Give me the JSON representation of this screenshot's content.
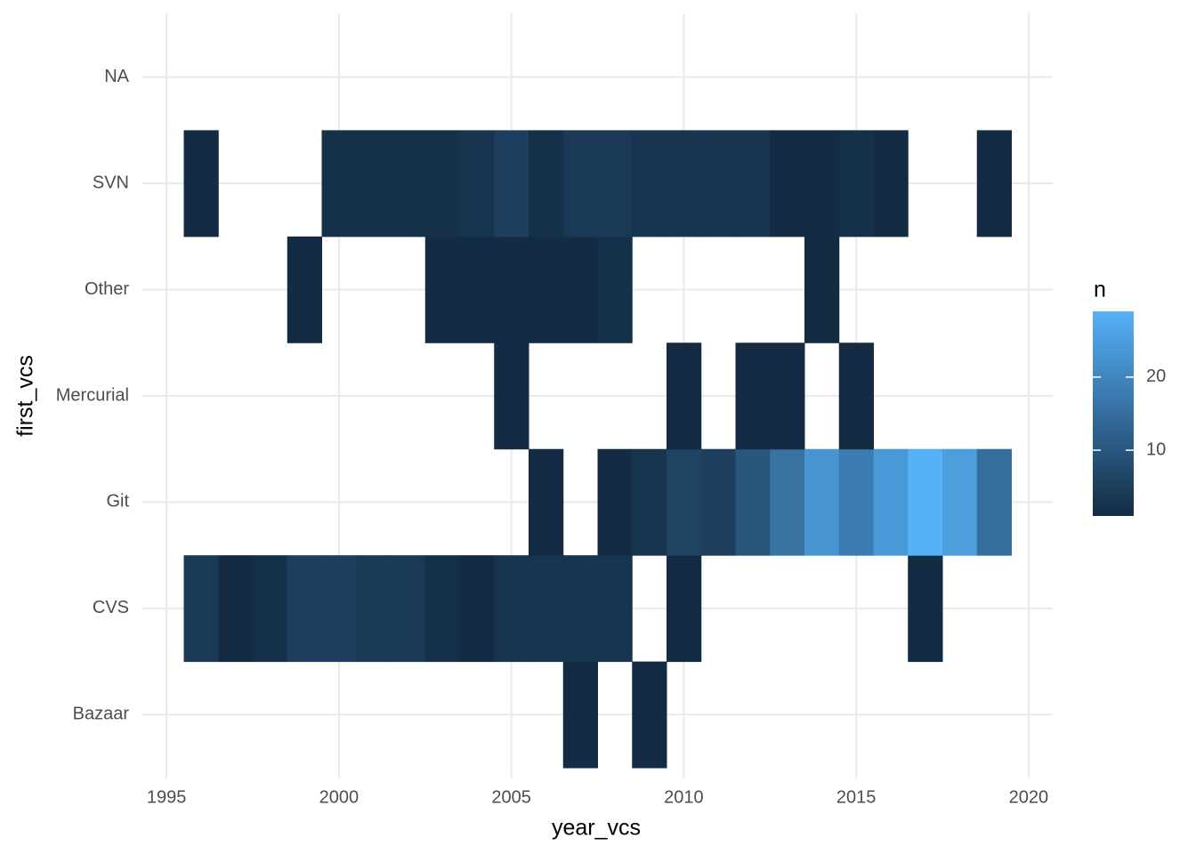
{
  "chart_data": {
    "type": "heatmap",
    "x_label": "year_vcs",
    "y_label": "first_vcs",
    "legend_title": "n",
    "x": [
      1996,
      1997,
      1998,
      1999,
      2000,
      2001,
      2002,
      2003,
      2004,
      2005,
      2006,
      2007,
      2008,
      2009,
      2010,
      2011,
      2012,
      2013,
      2014,
      2015,
      2016,
      2017,
      2018,
      2019
    ],
    "categories": [
      "Bazaar",
      "CVS",
      "Git",
      "Mercurial",
      "Other",
      "SVN",
      "NA"
    ],
    "values": [
      [
        null,
        null,
        null,
        null,
        null,
        null,
        null,
        null,
        null,
        null,
        null,
        1,
        null,
        1,
        null,
        null,
        null,
        null,
        null,
        null,
        null,
        null,
        null,
        null
      ],
      [
        4,
        1,
        2,
        5,
        5,
        4,
        4,
        2,
        1,
        3,
        3,
        3,
        3,
        null,
        1,
        null,
        null,
        null,
        null,
        null,
        null,
        1,
        null,
        null
      ],
      [
        null,
        null,
        null,
        null,
        null,
        null,
        null,
        null,
        null,
        null,
        1,
        null,
        1,
        3,
        6,
        5,
        10,
        16,
        23,
        18,
        24,
        29,
        25,
        15
      ],
      [
        null,
        null,
        null,
        null,
        null,
        null,
        null,
        null,
        null,
        1,
        null,
        null,
        null,
        null,
        1,
        null,
        1,
        1,
        null,
        1,
        null,
        null,
        null,
        null
      ],
      [
        null,
        null,
        null,
        1,
        null,
        null,
        null,
        1,
        1,
        1,
        1,
        1,
        2,
        null,
        null,
        null,
        null,
        null,
        1,
        null,
        null,
        null,
        null,
        null
      ],
      [
        1,
        null,
        null,
        null,
        2,
        2,
        2,
        2,
        3,
        5,
        2,
        4,
        4,
        3,
        3,
        3,
        3,
        1,
        1,
        2,
        1,
        null,
        null,
        1
      ],
      [
        null,
        null,
        null,
        null,
        null,
        null,
        null,
        null,
        null,
        null,
        null,
        null,
        null,
        null,
        null,
        null,
        null,
        null,
        null,
        null,
        null,
        null,
        null,
        null
      ]
    ],
    "xlim": [
      1994.3,
      2020.7
    ],
    "xticks": [
      1995,
      2000,
      2005,
      2010,
      2015,
      2020
    ],
    "zlim": [
      1,
      29
    ],
    "zticks": [
      10,
      20
    ],
    "color_low": "#132B43",
    "color_high": "#56B1F7",
    "grid": true
  }
}
